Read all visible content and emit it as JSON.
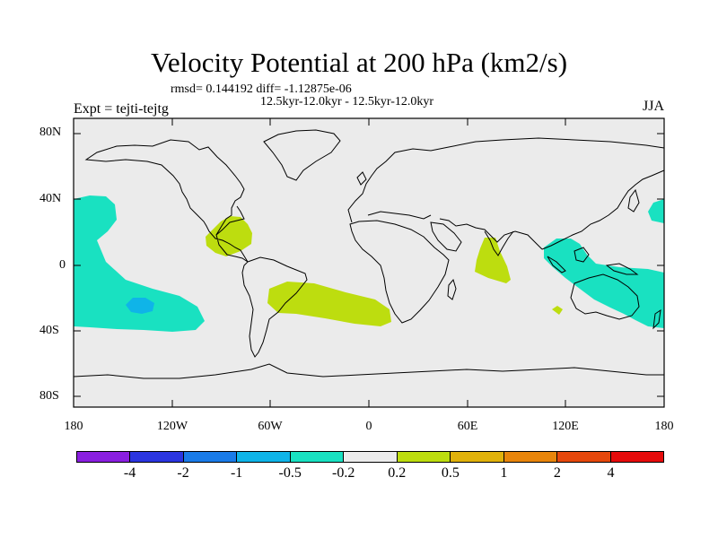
{
  "title": "Velocity Potential at 200 hPa (km2/s)",
  "rmsd_line": "rmsd= 0.144192 diff= -1.12875e-06",
  "subtitle": "12.5kyr-12.0kyr - 12.5kyr-12.0kyr",
  "expt": "Expt = tejti-tejtg",
  "season": "JJA",
  "lat_ticks": [
    "80N",
    "40N",
    "0",
    "40S",
    "80S"
  ],
  "lon_ticks": [
    "180",
    "120W",
    "60W",
    "0",
    "60E",
    "120E",
    "180"
  ],
  "colorbar": {
    "colors": [
      "#8a1fe0",
      "#2b35e0",
      "#1a7be8",
      "#0fb4e8",
      "#19e1c1",
      "#ebebeb",
      "#bddd0f",
      "#e1b20b",
      "#e8850b",
      "#e6480c",
      "#e60b0b"
    ],
    "labels": [
      "-4",
      "-2",
      "-1",
      "-0.5",
      "-0.2",
      "0.2",
      "0.5",
      "1",
      "2",
      "4"
    ]
  },
  "colors": {
    "background": "#ebebeb",
    "negative_fill": "#19e1c1",
    "strong_negative_fill": "#0fb4e8",
    "positive_fill": "#bddd0f"
  }
}
